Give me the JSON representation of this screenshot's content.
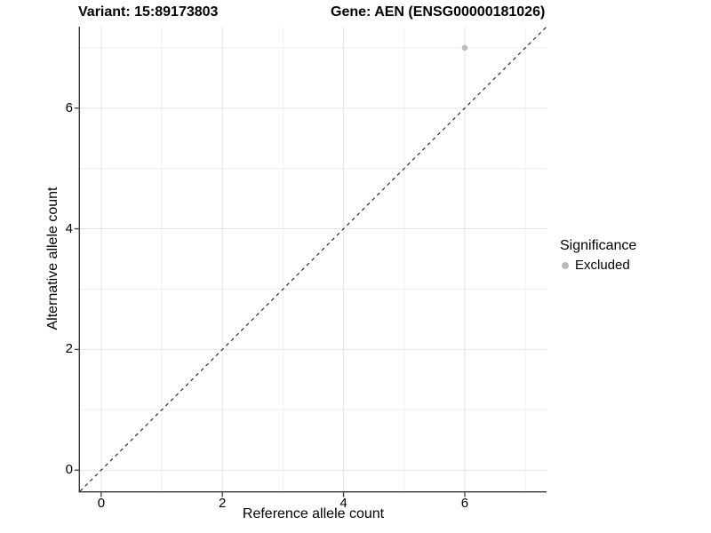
{
  "title": {
    "variant": "Variant: 15:89173803",
    "gene": "Gene: AEN (ENSG00000181026)"
  },
  "legend": {
    "title": "Significance",
    "items": [
      {
        "label": "Excluded",
        "color": "#b9b9b9"
      }
    ]
  },
  "chart_data": {
    "type": "scatter",
    "title": "Variant: 15:89173803 | Gene: AEN (ENSG00000181026)",
    "xlabel": "Reference allele count",
    "ylabel": "Alternative allele count",
    "xlim": [
      -0.35,
      7.35
    ],
    "ylim": [
      -0.35,
      7.35
    ],
    "x_ticks": [
      0,
      2,
      4,
      6
    ],
    "y_ticks": [
      0,
      2,
      4,
      6
    ],
    "grid": {
      "on": true,
      "major": [
        0,
        2,
        4,
        6
      ],
      "minor": [
        1,
        3,
        5,
        7
      ]
    },
    "legend_position": "right",
    "series": [
      {
        "name": "Excluded",
        "color": "#b9b9b9",
        "marker": "circle",
        "points": [
          {
            "x": 6,
            "y": 7
          }
        ]
      }
    ],
    "reference_line": {
      "type": "identity",
      "style": "dashed",
      "color": "#1a1a1a",
      "from": [
        -0.35,
        -0.35
      ],
      "to": [
        7.35,
        7.35
      ]
    }
  },
  "colors": {
    "background": "#ffffff",
    "grid_major": "#e4e4e4",
    "grid_minor": "#f0f0f0",
    "axis": "#383838",
    "text": "#000000",
    "excluded_point": "#b9b9b9"
  }
}
